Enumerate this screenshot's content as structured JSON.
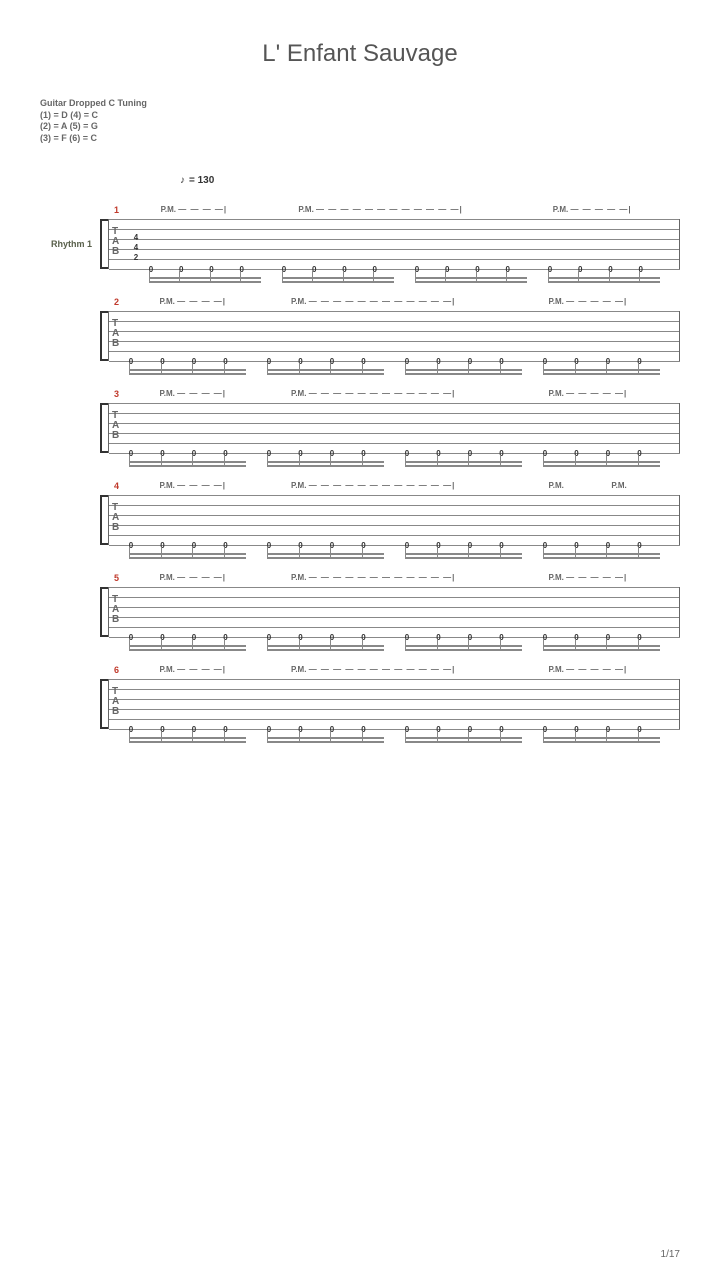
{
  "title": "L' Enfant Sauvage",
  "tuning_header": "Guitar Dropped C Tuning",
  "tuning_lines": [
    "(1) = D (4) = C",
    "(2) = A (5) = G",
    "(3) = F  (6) = C"
  ],
  "tempo": "= 130",
  "track_label": "Rhythm 1",
  "page_number": "1/17",
  "colors": {
    "bg": "#ffffff",
    "title": "#555555",
    "text": "#666666",
    "measure_num": "#c0392b",
    "track_label": "#585f4a",
    "staff_line": "#888888"
  },
  "tab_letters": [
    "T",
    "A",
    "B"
  ],
  "systems": [
    {
      "measure_num": "1",
      "has_track_label": true,
      "has_tempo": true,
      "pm_indent": true,
      "pm_segments": [
        {
          "left_pct": 2,
          "label": "P.M.",
          "dashes": "— — — —|"
        },
        {
          "left_pct": 28,
          "label": "P.M.",
          "dashes": "— — — — — — — — — — — —|"
        },
        {
          "left_pct": 76,
          "label": "P.M.",
          "dashes": "— — — — —|"
        }
      ],
      "initial_chord": [
        "4",
        "4",
        "2"
      ],
      "beat_groups": 4,
      "notes_per_group": 4,
      "fret_value": "0"
    },
    {
      "measure_num": "2",
      "pm_segments": [
        {
          "left_pct": 9,
          "label": "P.M.",
          "dashes": "— — — —|"
        },
        {
          "left_pct": 32,
          "label": "P.M.",
          "dashes": "— — — — — — — — — — — —|"
        },
        {
          "left_pct": 77,
          "label": "P.M.",
          "dashes": "— — — — —|"
        }
      ],
      "beat_groups": 4,
      "notes_per_group": 4,
      "fret_value": "0"
    },
    {
      "measure_num": "3",
      "pm_segments": [
        {
          "left_pct": 9,
          "label": "P.M.",
          "dashes": "— — — —|"
        },
        {
          "left_pct": 32,
          "label": "P.M.",
          "dashes": "— — — — — — — — — — — —|"
        },
        {
          "left_pct": 77,
          "label": "P.M.",
          "dashes": "— — — — —|"
        }
      ],
      "beat_groups": 4,
      "notes_per_group": 4,
      "fret_value": "0"
    },
    {
      "measure_num": "4",
      "pm_segments": [
        {
          "left_pct": 9,
          "label": "P.M.",
          "dashes": "— — — —|"
        },
        {
          "left_pct": 32,
          "label": "P.M.",
          "dashes": "— — — — — — — — — — — —|"
        },
        {
          "left_pct": 77,
          "label": "P.M.",
          "dashes": ""
        },
        {
          "left_pct": 88,
          "label": "P.M.",
          "dashes": ""
        }
      ],
      "beat_groups": 4,
      "notes_per_group": 4,
      "last_group_special": true,
      "fret_value": "0"
    },
    {
      "measure_num": "5",
      "pm_segments": [
        {
          "left_pct": 9,
          "label": "P.M.",
          "dashes": "— — — —|"
        },
        {
          "left_pct": 32,
          "label": "P.M.",
          "dashes": "— — — — — — — — — — — —|"
        },
        {
          "left_pct": 77,
          "label": "P.M.",
          "dashes": "— — — — —|"
        }
      ],
      "beat_groups": 4,
      "notes_per_group": 4,
      "fret_value": "0"
    },
    {
      "measure_num": "6",
      "pm_segments": [
        {
          "left_pct": 9,
          "label": "P.M.",
          "dashes": "— — — —|"
        },
        {
          "left_pct": 32,
          "label": "P.M.",
          "dashes": "— — — — — — — — — — — —|"
        },
        {
          "left_pct": 77,
          "label": "P.M.",
          "dashes": "— — — — —|"
        }
      ],
      "beat_groups": 4,
      "notes_per_group": 4,
      "fret_value": "0"
    }
  ]
}
